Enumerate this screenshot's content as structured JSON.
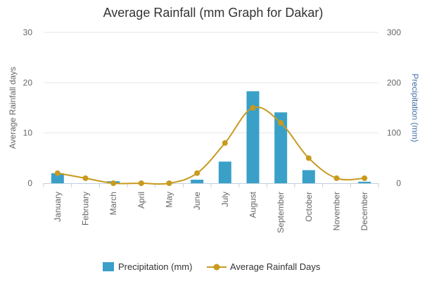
{
  "chart_data": {
    "type": "bar",
    "title": "Average Rainfall (mm Graph for Dakar)",
    "categories": [
      "January",
      "February",
      "March",
      "April",
      "May",
      "June",
      "July",
      "August",
      "September",
      "October",
      "November",
      "December"
    ],
    "series": [
      {
        "name": "Precipitation (mm)",
        "type": "bar",
        "axis": "right",
        "color": "#3aa0c8",
        "values": [
          20,
          0,
          4,
          0,
          0,
          7,
          43,
          183,
          141,
          26,
          0,
          3
        ]
      },
      {
        "name": "Average Rainfall Days",
        "type": "line",
        "axis": "left",
        "color": "#c89a1e",
        "values": [
          2,
          1,
          0,
          0,
          0,
          2,
          8,
          15,
          12,
          5,
          1,
          1
        ]
      }
    ],
    "y_left": {
      "label": "Average Rainfall days",
      "range": [
        0,
        30
      ],
      "ticks": [
        0,
        10,
        20,
        30
      ]
    },
    "y_right": {
      "label": "Precipitation (mm)",
      "range": [
        0,
        300
      ],
      "ticks": [
        0,
        100,
        200,
        300
      ],
      "label_color": "#4572a7"
    },
    "grid": true,
    "legend_position": "bottom-center",
    "colors": {
      "grid": "#e6e6e6",
      "axis_line": "#c0d0e0"
    }
  }
}
